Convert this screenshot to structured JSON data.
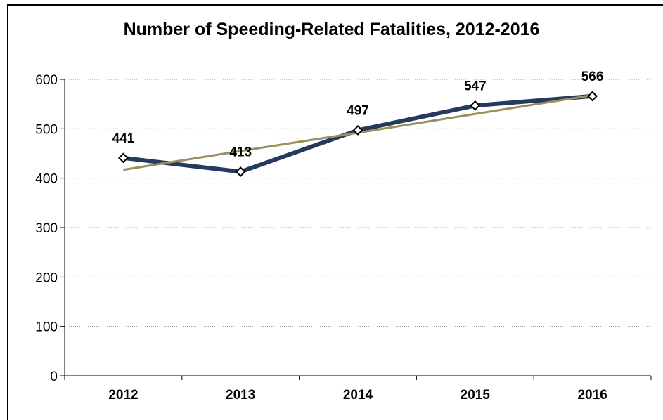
{
  "chart_data": {
    "type": "line",
    "title": "Number of Speeding-Related Fatalities, 2012-2016",
    "xlabel": "",
    "ylabel": "",
    "categories": [
      "2012",
      "2013",
      "2014",
      "2015",
      "2016"
    ],
    "series": [
      {
        "values": [
          441,
          413,
          497,
          547,
          566
        ],
        "color": "#243a5e",
        "marker": "diamond",
        "data_labels": [
          "441",
          "413",
          "497",
          "547",
          "566"
        ]
      },
      {
        "role": "trendline",
        "type": "linear",
        "values": [
          417,
          455,
          492,
          530,
          568
        ],
        "color": "#9b8f5a"
      }
    ],
    "ylim": [
      0,
      600
    ],
    "yticks": [
      0,
      100,
      200,
      300,
      400,
      500,
      600
    ],
    "ytick_labels": [
      "0",
      "100",
      "200",
      "300",
      "400",
      "500",
      "600"
    ],
    "grid": "horizontal dotted",
    "legend": "none"
  }
}
